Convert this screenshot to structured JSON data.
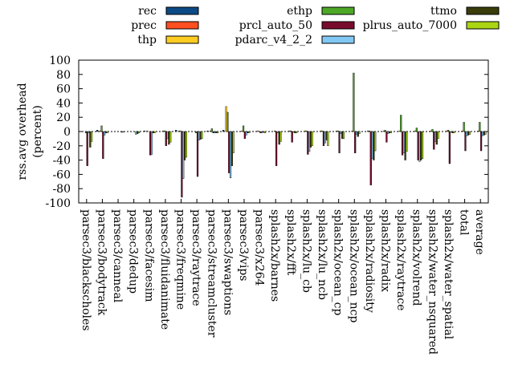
{
  "chart_data": {
    "type": "bar",
    "ylabel": "rss.avg overhead\n(percent)",
    "ylim": [
      -100,
      100
    ],
    "yticks": [
      100,
      80,
      60,
      40,
      20,
      0,
      -20,
      -40,
      -60,
      -80,
      -100
    ],
    "legend_position": "top",
    "categories": [
      "parsec3/blackscholes",
      "parsec3/bodytrack",
      "parsec3/canneal",
      "parsec3/dedup",
      "parsec3/facesim",
      "parsec3/fluidanimate",
      "parsec3/freqmine",
      "parsec3/raytrace",
      "parsec3/streamcluster",
      "parsec3/swaptions",
      "parsec3/vips",
      "parsec3/x264",
      "splash2x/barnes",
      "splash2x/fft",
      "splash2x/lu_cb",
      "splash2x/lu_ncb",
      "splash2x/ocean_cp",
      "splash2x/ocean_ncp",
      "splash2x/radiosity",
      "splash2x/radix",
      "splash2x/raytrace",
      "splash2x/volrend",
      "splash2x/water_nsquared",
      "splash2x/water_spatial",
      "total",
      "average"
    ],
    "series": [
      {
        "name": "rec",
        "color": "#0b4a85",
        "values": [
          0,
          2,
          0,
          0,
          1,
          0,
          2,
          0,
          1,
          2,
          0,
          0,
          0,
          0,
          0,
          0,
          0,
          0,
          0,
          0,
          0,
          0,
          0,
          0,
          0,
          0
        ]
      },
      {
        "name": "prec",
        "color": "#ff4e20",
        "values": [
          0,
          0,
          0,
          0,
          0,
          0,
          0,
          0,
          0,
          0,
          0,
          0,
          0,
          0,
          0,
          0,
          0,
          0,
          0,
          0,
          0,
          0,
          0,
          0,
          0,
          0
        ]
      },
      {
        "name": "thp",
        "color": "#ffcc22",
        "values": [
          0,
          1,
          0,
          0,
          1,
          1,
          1,
          0,
          1,
          35,
          1,
          1,
          0,
          1,
          1,
          1,
          1,
          1,
          1,
          1,
          1,
          1,
          1,
          1,
          1,
          1
        ]
      },
      {
        "name": "ethp",
        "color": "#4da826",
        "values": [
          -2,
          8,
          0,
          0,
          0,
          1,
          1,
          -2,
          4,
          27,
          8,
          0,
          1,
          1,
          1,
          1,
          1,
          82,
          1,
          2,
          23,
          5,
          3,
          2,
          13,
          13
        ]
      },
      {
        "name": "prcl_auto_50",
        "color": "#790c2c",
        "values": [
          -48,
          -38,
          0,
          0,
          -33,
          -20,
          -92,
          -63,
          -2,
          -58,
          -10,
          -2,
          -48,
          -15,
          -32,
          -20,
          -30,
          -30,
          -75,
          -15,
          -33,
          -40,
          -25,
          -45,
          -27,
          -27
        ]
      },
      {
        "name": "pdarc_v4_2_2",
        "color": "#81c8f5",
        "values": [
          -2,
          -5,
          0,
          -4,
          -32,
          -10,
          -66,
          -12,
          -2,
          -65,
          -5,
          -2,
          -2,
          -1,
          -28,
          -16,
          -3,
          -4,
          -38,
          -3,
          -30,
          -42,
          -14,
          -1,
          -6,
          -6
        ]
      },
      {
        "name": "ttmo",
        "color": "#3a3d0a",
        "values": [
          -22,
          -2,
          -1,
          -3,
          -2,
          -18,
          -40,
          -11,
          -2,
          -48,
          -2,
          -1,
          -18,
          -2,
          -22,
          -12,
          -10,
          -7,
          -40,
          -2,
          -40,
          -40,
          -18,
          -2,
          -5,
          -5
        ]
      },
      {
        "name": "plrus_auto_7000",
        "color": "#a9d513",
        "values": [
          -14,
          -2,
          -1,
          -2,
          -2,
          -15,
          -36,
          -10,
          -2,
          -30,
          -2,
          -2,
          -14,
          -2,
          -20,
          -20,
          -10,
          -3,
          -27,
          -2,
          -28,
          -38,
          -10,
          -2,
          -4,
          -4
        ]
      }
    ]
  }
}
